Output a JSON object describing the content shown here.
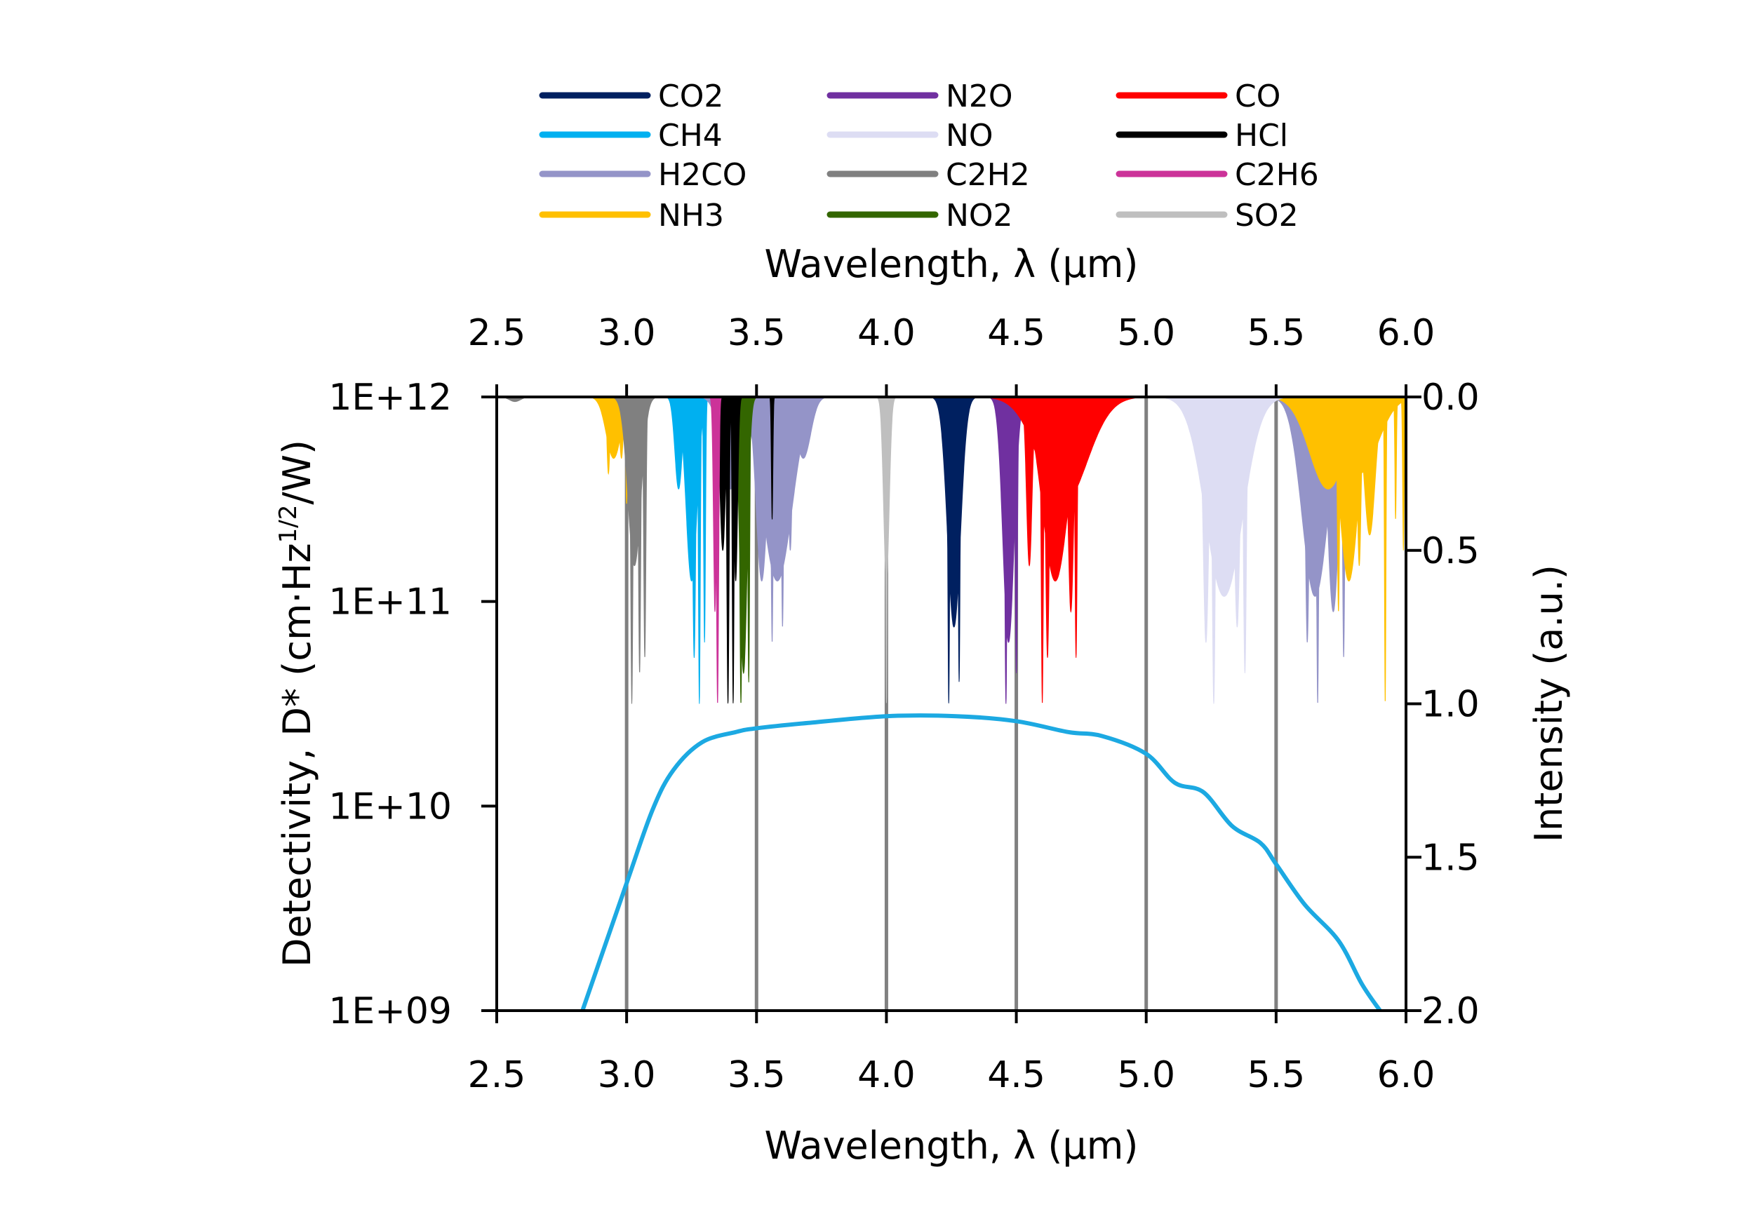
{
  "chart_data": {
    "type": "line",
    "top_xlabel": "Wavelength,  λ (μm)",
    "xlabel": "Wavelength,  λ (μm)",
    "ylabel": "Detectivity, D* (cm·Hz",
    "ylabel_sup": "1/2",
    "ylabel_tail": "/W)",
    "y2label": "Intensity (a.u.)",
    "xlim": [
      2.5,
      6.0
    ],
    "ylim": [
      1000000000.0,
      1000000000000.0
    ],
    "yscale": "log",
    "y2lim": [
      0.0,
      2.0
    ],
    "y2_inverted": true,
    "grid": "vertical",
    "legend_position": "top",
    "x_ticks": [
      "2.5",
      "3.0",
      "3.5",
      "4.0",
      "4.5",
      "5.0",
      "5.5",
      "6.0"
    ],
    "y_ticks": [
      "1E+09",
      "1E+10",
      "1E+11",
      "1E+12"
    ],
    "y2_ticks": [
      "0.0",
      "0.5",
      "1.0",
      "1.5",
      "2.0"
    ],
    "detectivity": {
      "color": "#1CA9E2",
      "x": [
        2.83,
        3.0,
        3.1,
        3.18,
        3.29,
        3.42,
        3.5,
        3.7,
        4.0,
        4.27,
        4.5,
        4.7,
        4.83,
        5.0,
        5.11,
        5.22,
        5.33,
        5.44,
        5.5,
        5.61,
        5.74,
        5.83,
        5.9
      ],
      "y": [
        1000000000.0,
        4200000000.0,
        9600000000.0,
        15000000000.0,
        20500000000.0,
        23000000000.0,
        24000000000.0,
        25500000000.0,
        27500000000.0,
        27500000000.0,
        26000000000.0,
        23000000000.0,
        22000000000.0,
        18000000000.0,
        13000000000.0,
        11700000000.0,
        8000000000.0,
        6600000000.0,
        5200000000.0,
        3300000000.0,
        2200000000.0,
        1350000000.0,
        1000000000.0
      ]
    },
    "gases": [
      {
        "name": "CO2",
        "color": "#002060",
        "bands": [
          [
            4.26,
            0.75,
            0.035
          ],
          [
            4.24,
            1.0,
            0.005
          ],
          [
            4.28,
            0.93,
            0.005
          ]
        ]
      },
      {
        "name": "CH4",
        "color": "#00B0F0",
        "bands": [
          [
            3.25,
            0.6,
            0.03
          ],
          [
            3.26,
            0.85,
            0.008
          ],
          [
            3.28,
            1.0,
            0.005
          ],
          [
            3.3,
            0.8,
            0.005
          ],
          [
            3.2,
            0.3,
            0.02
          ]
        ]
      },
      {
        "name": "H2CO",
        "color": "#9494C8",
        "bands": [
          [
            3.58,
            0.6,
            0.08
          ],
          [
            3.52,
            0.6,
            0.03
          ],
          [
            3.56,
            0.8,
            0.006
          ],
          [
            3.6,
            0.75,
            0.006
          ],
          [
            3.63,
            0.5,
            0.01
          ],
          [
            3.68,
            0.2,
            0.04
          ],
          [
            3.4,
            0.3,
            0.05
          ],
          [
            5.65,
            0.65,
            0.07
          ],
          [
            5.66,
            1.0,
            0.006
          ],
          [
            5.62,
            0.8,
            0.01
          ],
          [
            5.76,
            0.85,
            0.006
          ],
          [
            5.72,
            0.7,
            0.03
          ]
        ]
      },
      {
        "name": "NH3",
        "color": "#FFC000",
        "bands": [
          [
            2.95,
            0.2,
            0.04
          ],
          [
            2.93,
            0.25,
            0.008
          ],
          [
            2.98,
            0.2,
            0.01
          ],
          [
            3.0,
            0.35,
            0.004
          ],
          [
            3.06,
            0.15,
            0.02
          ],
          [
            5.7,
            0.3,
            0.1
          ],
          [
            5.78,
            0.6,
            0.05
          ],
          [
            5.74,
            0.7,
            0.006
          ],
          [
            5.82,
            0.55,
            0.01
          ],
          [
            5.86,
            0.45,
            0.03
          ],
          [
            5.92,
            1.0,
            0.004
          ],
          [
            5.96,
            0.4,
            0.004
          ],
          [
            5.99,
            0.5,
            0.004
          ],
          [
            5.82,
            0.25,
            0.1
          ]
        ]
      },
      {
        "name": "N2O",
        "color": "#7030A0",
        "bands": [
          [
            4.47,
            0.8,
            0.03
          ],
          [
            4.46,
            1.0,
            0.006
          ],
          [
            4.5,
            0.9,
            0.006
          ]
        ]
      },
      {
        "name": "NO",
        "color": "#DDDDF3",
        "bands": [
          [
            5.3,
            0.65,
            0.1
          ],
          [
            5.26,
            1.0,
            0.008
          ],
          [
            5.38,
            0.9,
            0.008
          ],
          [
            5.23,
            0.8,
            0.015
          ],
          [
            5.35,
            0.75,
            0.015
          ]
        ]
      },
      {
        "name": "C2H2",
        "color": "#808080",
        "bands": [
          [
            3.03,
            0.55,
            0.035
          ],
          [
            3.02,
            1.0,
            0.006
          ],
          [
            3.05,
            0.9,
            0.006
          ],
          [
            3.07,
            0.85,
            0.006
          ],
          [
            2.57,
            0.015,
            0.03
          ]
        ]
      },
      {
        "name": "NO2",
        "color": "#336600",
        "bands": [
          [
            3.45,
            0.9,
            0.02
          ],
          [
            3.44,
            1.0,
            0.006
          ],
          [
            3.47,
            0.93,
            0.005
          ]
        ]
      },
      {
        "name": "CO",
        "color": "#FF0000",
        "bands": [
          [
            4.68,
            0.35,
            0.13
          ],
          [
            4.65,
            0.6,
            0.07
          ],
          [
            4.6,
            1.0,
            0.006
          ],
          [
            4.62,
            0.85,
            0.01
          ],
          [
            4.73,
            0.85,
            0.006
          ],
          [
            4.71,
            0.7,
            0.015
          ],
          [
            4.55,
            0.55,
            0.015
          ]
        ]
      },
      {
        "name": "HCl",
        "color": "#000000",
        "bands": [
          [
            3.37,
            0.5,
            0.015
          ],
          [
            3.39,
            1.0,
            0.006
          ],
          [
            3.41,
            1.0,
            0.005
          ],
          [
            3.42,
            0.6,
            0.01
          ],
          [
            3.56,
            0.4,
            0.004
          ]
        ]
      },
      {
        "name": "C2H6",
        "color": "#CC3399",
        "bands": [
          [
            3.35,
            1.0,
            0.006
          ],
          [
            3.34,
            0.7,
            0.008
          ]
        ]
      },
      {
        "name": "SO2",
        "color": "#BFBFBF",
        "bands": [
          [
            4.0,
            0.6,
            0.015
          ],
          [
            4.0,
            1.0,
            0.004
          ]
        ]
      }
    ]
  }
}
